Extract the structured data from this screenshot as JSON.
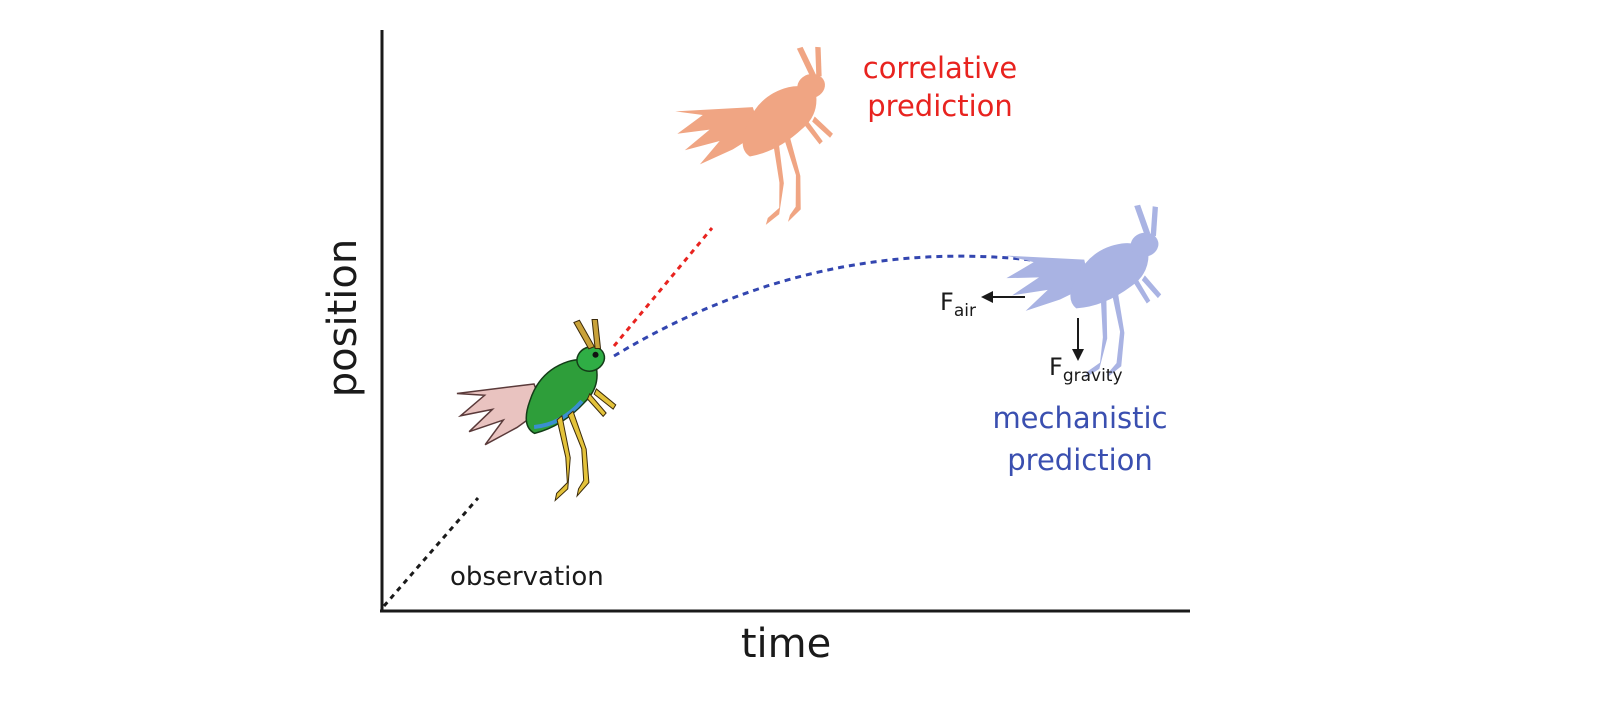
{
  "axes": {
    "x_label": "time",
    "y_label": "position"
  },
  "labels": {
    "observation": "observation",
    "correlative": [
      "correlative",
      "prediction"
    ],
    "mechanistic": [
      "mechanistic",
      "prediction"
    ],
    "force_air": {
      "base": "F",
      "sub": "air"
    },
    "force_gravity": {
      "base": "F",
      "sub": "gravity"
    }
  },
  "colors": {
    "axis": "#1a1a1a",
    "observation": "#1a1a1a",
    "correlative_text": "#e8231f",
    "correlative_line": "#e8231f",
    "correlative_insect": "#f0a583",
    "mechanistic_text": "#3a4fb0",
    "mechanistic_line": "#3346b0",
    "mechanistic_insect": "#a9b3e3",
    "insect_body": "#2e9e3a",
    "insect_wing": "#e9c3c0",
    "insect_legs": "#e3c23a"
  },
  "icons": {
    "observed_insect": "grasshopper-icon",
    "correlative_insect": "grasshopper-silhouette-icon",
    "mechanistic_insect": "grasshopper-silhouette-icon"
  }
}
